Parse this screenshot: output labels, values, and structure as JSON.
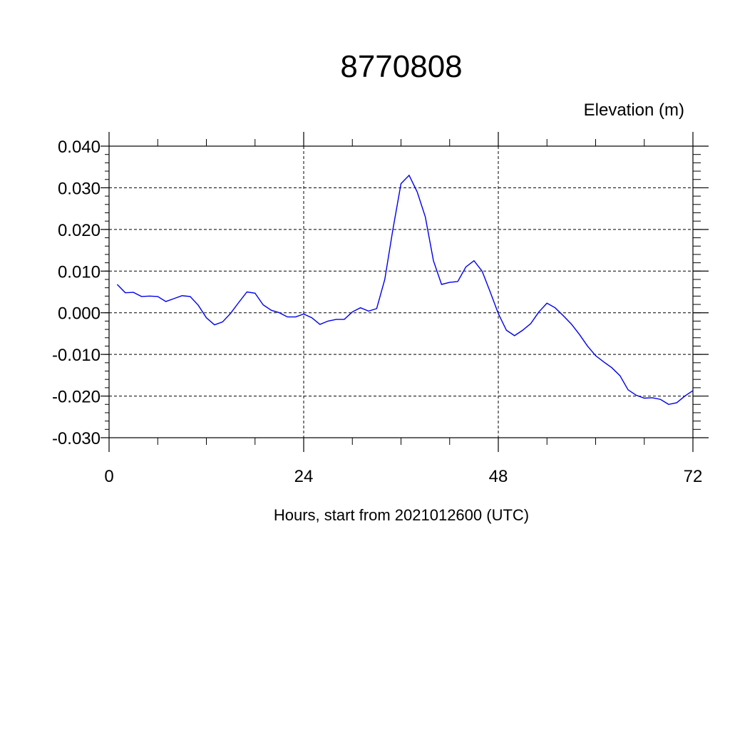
{
  "chart_data": {
    "type": "line",
    "title": "8770808",
    "subtitle": "Elevation (m)",
    "xlabel": "Hours, start from 2021012600 (UTC)",
    "ylabel": "",
    "xlim": [
      0,
      72
    ],
    "ylim": [
      -0.03,
      0.04
    ],
    "x_ticks": [
      0,
      24,
      48,
      72
    ],
    "x_tick_labels": [
      "0",
      "24",
      "48",
      "72"
    ],
    "y_ticks": [
      -0.03,
      -0.02,
      -0.01,
      0.0,
      0.01,
      0.02,
      0.03,
      0.04
    ],
    "y_tick_labels": [
      "-0.030",
      "-0.020",
      "-0.010",
      "0.000",
      "0.010",
      "0.020",
      "0.030",
      "0.040"
    ],
    "grid": true,
    "line_color": "#0000ee",
    "series": [
      {
        "x": [
          1,
          2,
          3,
          4,
          5,
          6,
          7,
          8,
          9,
          10,
          11,
          12,
          13,
          14,
          15,
          16,
          17,
          18,
          19,
          20,
          21,
          22,
          23,
          24,
          25,
          26,
          27,
          28,
          29,
          30,
          31,
          32,
          33,
          34,
          35,
          36,
          37,
          38,
          39,
          40,
          41,
          42,
          43,
          44,
          45,
          46,
          47,
          48,
          49,
          50,
          51,
          52,
          53,
          54,
          55,
          56,
          57,
          58,
          59,
          60,
          61,
          62,
          63,
          64,
          65,
          66,
          67,
          68,
          69,
          70,
          71,
          72
        ],
        "y": [
          0.0068,
          0.0048,
          0.0049,
          0.0039,
          0.004,
          0.0039,
          0.0027,
          0.0034,
          0.0041,
          0.0039,
          0.0018,
          -0.0012,
          -0.0029,
          -0.0022,
          -0.0001,
          0.0025,
          0.005,
          0.0047,
          0.0019,
          0.0006,
          0.0,
          -0.001,
          -0.001,
          -0.0003,
          -0.0012,
          -0.0028,
          -0.002,
          -0.0016,
          -0.0016,
          0.0002,
          0.0012,
          0.0004,
          0.001,
          0.008,
          0.02,
          0.031,
          0.033,
          0.029,
          0.023,
          0.0125,
          0.0068,
          0.0073,
          0.0075,
          0.011,
          0.0125,
          0.01,
          0.005,
          -0.0002,
          -0.0042,
          -0.0055,
          -0.0042,
          -0.0026,
          0.0002,
          0.0023,
          0.0012,
          -0.0007,
          -0.0027,
          -0.0052,
          -0.008,
          -0.0103,
          -0.0118,
          -0.0132,
          -0.0151,
          -0.0185,
          -0.0198,
          -0.0205,
          -0.0204,
          -0.0208,
          -0.022,
          -0.0216,
          -0.02,
          -0.0187
        ]
      }
    ]
  }
}
